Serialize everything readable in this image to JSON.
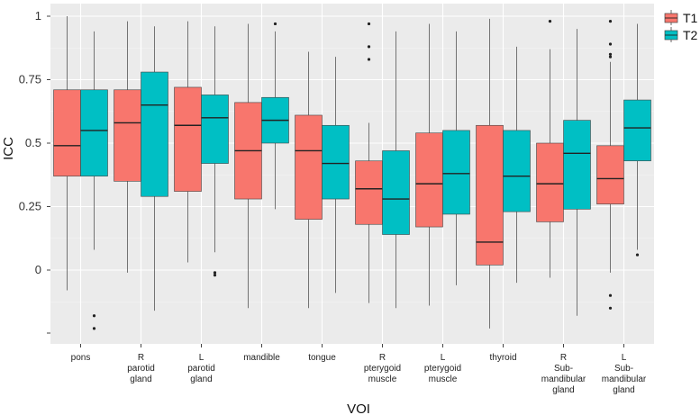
{
  "chart_data": {
    "type": "boxplot",
    "xlabel": "VOI",
    "ylabel": "ICC",
    "ylim": [
      -0.25,
      1.04
    ],
    "yticks": [
      {
        "value": 1,
        "label": "1"
      },
      {
        "value": 0.75,
        "label": "0.75"
      },
      {
        "value": 0.5,
        "label": "0.5"
      },
      {
        "value": 0.25,
        "label": "0.25"
      },
      {
        "value": 0,
        "label": "0"
      }
    ],
    "legend": {
      "position": "right-top",
      "entries": [
        {
          "name": "T1",
          "color": "#F8766D"
        },
        {
          "name": "T2",
          "color": "#00BFC4"
        }
      ]
    },
    "categories": [
      {
        "label": [
          "pons"
        ],
        "T1": {
          "min": -0.08,
          "q1": 0.37,
          "median": 0.49,
          "q3": 0.71,
          "max": 1.0,
          "outliers": []
        },
        "T2": {
          "min": 0.08,
          "q1": 0.37,
          "median": 0.55,
          "q3": 0.71,
          "max": 0.94,
          "outliers": [
            -0.18,
            -0.23
          ]
        }
      },
      {
        "label": [
          "R",
          "parotid",
          "gland"
        ],
        "T1": {
          "min": -0.01,
          "q1": 0.35,
          "median": 0.58,
          "q3": 0.71,
          "max": 0.98,
          "outliers": []
        },
        "T2": {
          "min": -0.16,
          "q1": 0.29,
          "median": 0.65,
          "q3": 0.78,
          "max": 0.96,
          "outliers": []
        }
      },
      {
        "label": [
          "L",
          "parotid",
          "gland"
        ],
        "T1": {
          "min": 0.03,
          "q1": 0.31,
          "median": 0.57,
          "q3": 0.72,
          "max": 0.98,
          "outliers": []
        },
        "T2": {
          "min": 0.07,
          "q1": 0.42,
          "median": 0.6,
          "q3": 0.69,
          "max": 0.96,
          "outliers": [
            -0.01,
            -0.02
          ]
        }
      },
      {
        "label": [
          "mandible"
        ],
        "T1": {
          "min": -0.15,
          "q1": 0.28,
          "median": 0.47,
          "q3": 0.66,
          "max": 0.97,
          "outliers": []
        },
        "T2": {
          "min": 0.24,
          "q1": 0.5,
          "median": 0.59,
          "q3": 0.68,
          "max": 0.94,
          "outliers": [
            0.97
          ]
        }
      },
      {
        "label": [
          "tongue"
        ],
        "T1": {
          "min": -0.15,
          "q1": 0.2,
          "median": 0.47,
          "q3": 0.61,
          "max": 0.86,
          "outliers": []
        },
        "T2": {
          "min": -0.09,
          "q1": 0.28,
          "median": 0.42,
          "q3": 0.57,
          "max": 0.84,
          "outliers": []
        }
      },
      {
        "label": [
          "R",
          "pterygoid",
          "muscle"
        ],
        "T1": {
          "min": -0.13,
          "q1": 0.18,
          "median": 0.32,
          "q3": 0.43,
          "max": 0.58,
          "outliers": [
            0.97,
            0.88,
            0.83
          ]
        },
        "T2": {
          "min": -0.15,
          "q1": 0.14,
          "median": 0.28,
          "q3": 0.47,
          "max": 0.94,
          "outliers": []
        }
      },
      {
        "label": [
          "L",
          "pterygoid",
          "muscle"
        ],
        "T1": {
          "min": -0.14,
          "q1": 0.17,
          "median": 0.34,
          "q3": 0.54,
          "max": 0.97,
          "outliers": []
        },
        "T2": {
          "min": -0.06,
          "q1": 0.22,
          "median": 0.38,
          "q3": 0.55,
          "max": 0.94,
          "outliers": []
        }
      },
      {
        "label": [
          "thyroid"
        ],
        "T1": {
          "min": -0.23,
          "q1": 0.02,
          "median": 0.11,
          "q3": 0.57,
          "max": 0.99,
          "outliers": []
        },
        "T2": {
          "min": -0.05,
          "q1": 0.23,
          "median": 0.37,
          "q3": 0.55,
          "max": 0.88,
          "outliers": []
        }
      },
      {
        "label": [
          "R",
          "Sub-",
          "mandibular",
          "gland"
        ],
        "T1": {
          "min": -0.03,
          "q1": 0.19,
          "median": 0.34,
          "q3": 0.5,
          "max": 0.87,
          "outliers": [
            0.98
          ]
        },
        "T2": {
          "min": -0.18,
          "q1": 0.24,
          "median": 0.46,
          "q3": 0.59,
          "max": 0.95,
          "outliers": []
        }
      },
      {
        "label": [
          "L",
          "Sub-",
          "mandibular",
          "gland"
        ],
        "T1": {
          "min": -0.01,
          "q1": 0.26,
          "median": 0.36,
          "q3": 0.49,
          "max": 0.82,
          "outliers": [
            0.98,
            0.89,
            0.85,
            0.84,
            -0.1,
            -0.15
          ]
        },
        "T2": {
          "min": 0.08,
          "q1": 0.43,
          "median": 0.56,
          "q3": 0.67,
          "max": 0.97,
          "outliers": [
            0.06
          ]
        }
      }
    ]
  }
}
